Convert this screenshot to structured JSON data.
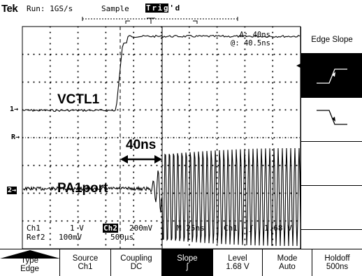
{
  "header": {
    "brand": "Tek",
    "run_status": "Run: 1GS/s",
    "acquire_mode": "Sample",
    "trigger_letters": [
      "T",
      "r",
      "i",
      "g",
      "'",
      "d"
    ]
  },
  "labels": {
    "trace1": "VCTL1",
    "trace2": "PA1port",
    "delta_annotation": "40ns",
    "ch1_marker": "1→",
    "ch2_marker": "2→",
    "ref_marker": "R→"
  },
  "measurement": {
    "delta": "Δ: 40ns",
    "at": "@: 40.5ns"
  },
  "status": {
    "ch1": "Ch1",
    "ch1_scale": "1 V",
    "ch2": "Ch2",
    "ch2_scale": "200mV",
    "timebase": "M 25ns",
    "trig_src": "Ch1",
    "trig_slope": "ʃ",
    "trig_level": "1.68 V",
    "ref2": "Ref2",
    "ref2_scale": "100mV",
    "ref2_time": "500μs"
  },
  "side_menu": {
    "title": "Edge Slope"
  },
  "bottom_menu": {
    "type_label": "Type",
    "type_value": "Edge",
    "source_label": "Source",
    "source_value": "Ch1",
    "coupling_label": "Coupling",
    "coupling_value": "DC",
    "slope_label": "Slope",
    "slope_value": "ʃ",
    "level_label": "Level",
    "level_value": "1.68 V",
    "mode_label": "Mode",
    "mode_value": "Auto",
    "holdoff_label": "Holdoff",
    "holdoff_value": "500ns"
  }
}
